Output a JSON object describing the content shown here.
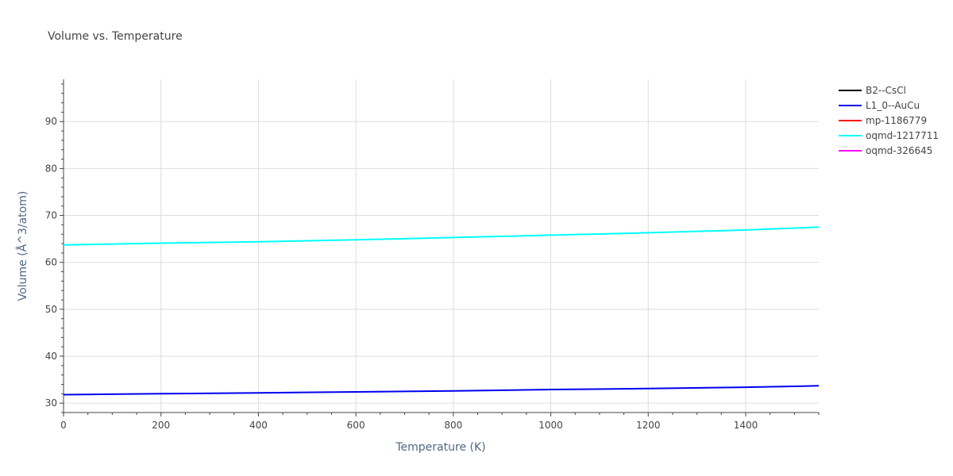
{
  "chart_data": {
    "type": "line",
    "title": "Volume vs. Temperature",
    "xlabel": "Temperature (K)",
    "ylabel": "Volume (Å^3/atom)",
    "xlim": [
      0,
      1550
    ],
    "ylim": [
      28,
      99
    ],
    "xticks": [
      0,
      200,
      400,
      600,
      800,
      1000,
      1200,
      1400
    ],
    "yticks": [
      30,
      40,
      50,
      60,
      70,
      80,
      90
    ],
    "grid": true,
    "legend_position": "top-right, outside plot",
    "series": [
      {
        "name": "B2--CsCl",
        "color": "#000000",
        "x": [],
        "y": []
      },
      {
        "name": "L1_0--AuCu",
        "color": "#0000ee",
        "x": [
          0,
          200,
          400,
          600,
          800,
          1000,
          1200,
          1400,
          1550
        ],
        "y": [
          31.8,
          32.0,
          32.2,
          32.4,
          32.6,
          32.9,
          33.1,
          33.4,
          33.7
        ]
      },
      {
        "name": "mp-1186779",
        "color": "#ff0000",
        "x": [],
        "y": []
      },
      {
        "name": "oqmd-1217711",
        "color": "#00ffff",
        "x": [
          0,
          200,
          400,
          600,
          800,
          1000,
          1200,
          1400,
          1550
        ],
        "y": [
          63.7,
          64.1,
          64.4,
          64.8,
          65.3,
          65.8,
          66.3,
          66.9,
          67.5
        ]
      },
      {
        "name": "oqmd-326645",
        "color": "#ff00ff",
        "x": [],
        "y": []
      }
    ]
  }
}
